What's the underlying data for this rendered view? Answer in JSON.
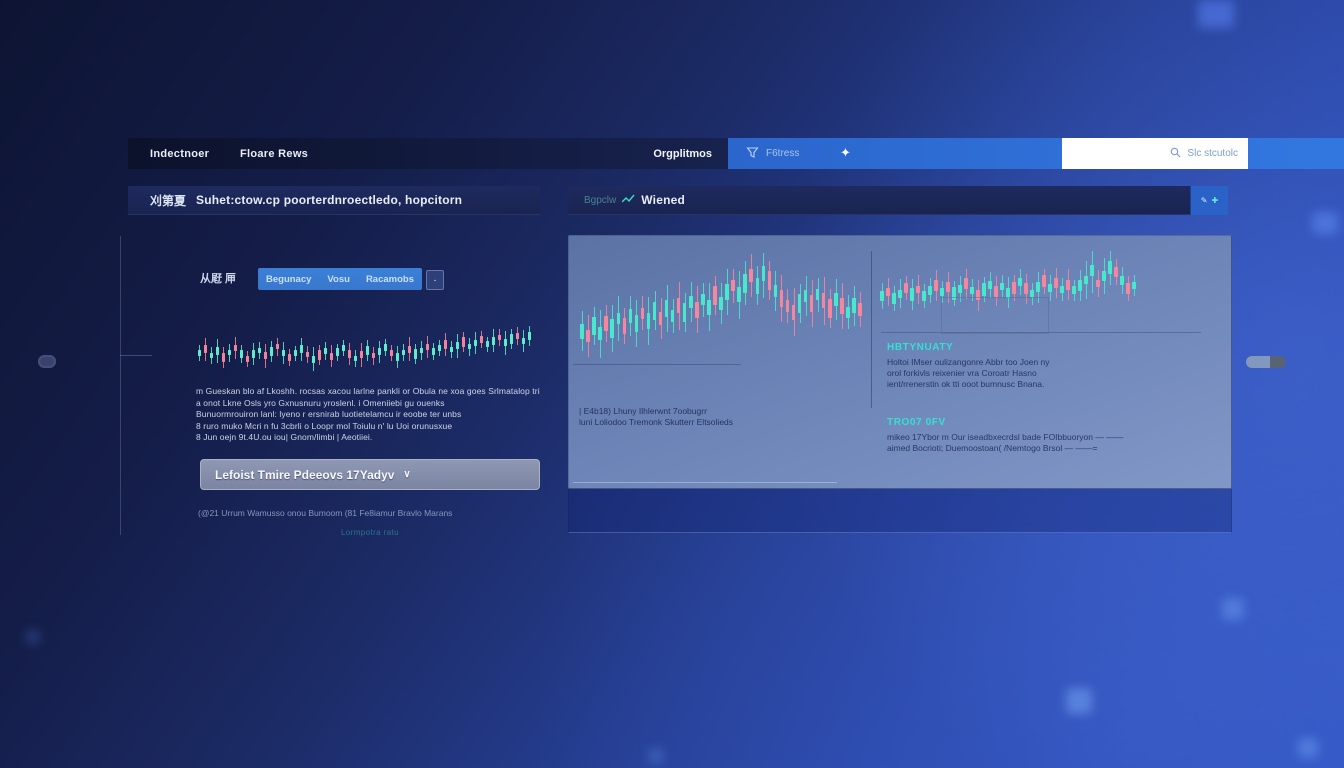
{
  "colors": {
    "candle_up": "#5feccb",
    "candle_down": "#f2849a",
    "accent_teal": "#35e0d0",
    "nav_blue": "#2e6fd4",
    "search_box_bg": "#ffffff"
  },
  "navbar": {
    "items": [
      {
        "label": "Indectnoer"
      },
      {
        "label": "Floare Rews"
      }
    ],
    "section_label": "Orgplitmos",
    "filter_label": "F6tress",
    "star_icon": "✦",
    "search_label": "Slc stcutolc"
  },
  "left_panel": {
    "header": {
      "badge": "刈第夏",
      "title": "Suhet:ctow.cp poorterdnroectledo, hopcitorn"
    },
    "toolbar": {
      "cjk_label": "从屘 㕅",
      "tabs": [
        {
          "label": "Begunacy"
        },
        {
          "label": "Vosu"
        },
        {
          "label": "Racamobs"
        }
      ],
      "more_label": "·"
    },
    "paragraph_lines": [
      "m Gueskan blo af Lkoshh. rocsas xacou larlne pankli or Obula ne xoa goes Srlmatalop tri",
      "a onot Lkne Osls yro Gxnusnuru yroslenl. i Omeniiebi gu ouenks",
      "Bunuormrouiron lanl: lyeno r ersnirab luotietelamcu ir eoobe ter unbs",
      "8 ruro muko Mcri n fu 3cbrli o Loopr mol Toiulu n' lu Uoi orunusxue",
      "8 Jun oejn 9t.4U.ou iou| Gnom/limbi | Aeotiiei."
    ],
    "dropdown": {
      "label": "Lefoist Tmire Pdeeovs 17Yadyv",
      "chevron": "∨"
    },
    "fine_print": "(@21 Urrum Wamusso onou Bumoom (81 Fe8iamur Bravlo Marans",
    "footer_link": "Lormpotra ratu"
  },
  "right_panel": {
    "header": {
      "prefix": "Bgpclw",
      "title": "Wiened"
    },
    "corner_button": {
      "glyph_a": "✎",
      "glyph_b": "✚"
    },
    "note_lines": [
      "| E4b18) Lhuny Ilhlerwnt 7oobugrr",
      "luni Loliodoo Tremonk Skutterr Eltsolieds"
    ],
    "annotations": [
      {
        "title": "HBTYNUATY",
        "lines": [
          "Holtoi IMser oulizangonre Abbr too Joen ny",
          "orol forkivls reixenier vra Coroatr Hasno",
          "ient/rrenerstin ok tti ooot bumnusc Bnana."
        ]
      },
      {
        "title": "TRO07 0FV",
        "lines": [
          "mikeo 17Ybor m Our iseadbxecrdsl bade FOIbbuoryon — ——",
          "aimed Bocrioti; Duemoostoan( /Nemtogo Brsol — ——="
        ]
      }
    ]
  },
  "chart_data": [
    {
      "id": "left-overview",
      "type": "candlestick",
      "title": "",
      "axes": "none",
      "body_width": 3,
      "colors": {
        "up": "#5feccb",
        "down": "#f2849a"
      },
      "candles": [
        [
          58,
          10,
          8,
          1
        ],
        [
          52,
          14,
          12,
          0
        ],
        [
          62,
          8,
          10,
          1
        ],
        [
          55,
          12,
          14,
          1
        ],
        [
          66,
          16,
          9,
          0
        ],
        [
          58,
          9,
          11,
          1
        ],
        [
          50,
          11,
          13,
          0
        ],
        [
          60,
          13,
          8,
          1
        ],
        [
          68,
          10,
          8,
          0
        ],
        [
          60,
          14,
          12,
          1
        ],
        [
          54,
          8,
          10,
          1
        ],
        [
          63,
          12,
          14,
          0
        ],
        [
          56,
          16,
          9,
          1
        ],
        [
          48,
          9,
          11,
          0
        ],
        [
          58,
          11,
          13,
          1
        ],
        [
          66,
          13,
          8,
          0
        ],
        [
          59,
          10,
          8,
          1
        ],
        [
          52,
          14,
          12,
          1
        ],
        [
          61,
          8,
          10,
          0
        ],
        [
          69,
          12,
          14,
          1
        ],
        [
          62,
          16,
          9,
          0
        ],
        [
          55,
          9,
          11,
          1
        ],
        [
          64,
          11,
          13,
          0
        ],
        [
          57,
          13,
          8,
          1
        ],
        [
          50,
          10,
          8,
          1
        ],
        [
          60,
          14,
          12,
          0
        ],
        [
          68,
          8,
          10,
          1
        ],
        [
          61,
          12,
          14,
          0
        ],
        [
          54,
          16,
          9,
          1
        ],
        [
          63,
          9,
          11,
          0
        ],
        [
          56,
          11,
          13,
          1
        ],
        [
          49,
          13,
          8,
          1
        ],
        [
          58,
          10,
          8,
          0
        ],
        [
          65,
          14,
          12,
          1
        ],
        [
          58,
          8,
          10,
          1
        ],
        [
          52,
          12,
          14,
          0
        ],
        [
          60,
          16,
          9,
          1
        ],
        [
          54,
          9,
          11,
          1
        ],
        [
          48,
          11,
          13,
          0
        ],
        [
          56,
          13,
          8,
          1
        ],
        [
          50,
          10,
          8,
          1
        ],
        [
          44,
          14,
          12,
          0
        ],
        [
          52,
          8,
          10,
          1
        ],
        [
          46,
          12,
          14,
          1
        ],
        [
          40,
          16,
          9,
          0
        ],
        [
          48,
          9,
          11,
          1
        ],
        [
          42,
          11,
          13,
          1
        ],
        [
          36,
          13,
          8,
          0
        ],
        [
          44,
          10,
          8,
          1
        ],
        [
          38,
          14,
          12,
          1
        ],
        [
          33,
          8,
          10,
          0
        ],
        [
          41,
          12,
          14,
          1
        ],
        [
          35,
          16,
          9,
          1
        ],
        [
          30,
          9,
          11,
          0
        ],
        [
          38,
          11,
          13,
          1
        ],
        [
          30,
          13,
          10,
          1
        ]
      ]
    },
    {
      "id": "right-main",
      "type": "candlestick",
      "title": "",
      "axes": "none",
      "body_width": 3.5,
      "colors": {
        "up": "#49e8cd",
        "down": "#f4879e"
      },
      "candles": [
        [
          62,
          12,
          10,
          1
        ],
        [
          66,
          9,
          12,
          0
        ],
        [
          58,
          14,
          8,
          1
        ],
        [
          64,
          10,
          14,
          1
        ],
        [
          56,
          12,
          9,
          0
        ],
        [
          60,
          15,
          11,
          1
        ],
        [
          52,
          9,
          13,
          1
        ],
        [
          58,
          13,
          8,
          0
        ],
        [
          50,
          11,
          10,
          1
        ],
        [
          56,
          14,
          12,
          1
        ],
        [
          48,
          9,
          9,
          0
        ],
        [
          54,
          12,
          13,
          1
        ],
        [
          46,
          15,
          8,
          1
        ],
        [
          52,
          10,
          11,
          0
        ],
        [
          44,
          13,
          12,
          1
        ],
        [
          50,
          9,
          9,
          1
        ],
        [
          42,
          12,
          13,
          0
        ],
        [
          47,
          15,
          8,
          1
        ],
        [
          39,
          10,
          11,
          1
        ],
        [
          45,
          13,
          12,
          0
        ],
        [
          37,
          9,
          9,
          1
        ],
        [
          43,
          12,
          13,
          1
        ],
        [
          34,
          15,
          8,
          0
        ],
        [
          40,
          10,
          11,
          1
        ],
        [
          31,
          13,
          12,
          1
        ],
        [
          26,
          9,
          9,
          0
        ],
        [
          33,
          12,
          13,
          1
        ],
        [
          24,
          15,
          10,
          1
        ],
        [
          18,
          10,
          12,
          0
        ],
        [
          26,
          13,
          9,
          1
        ],
        [
          16,
          12,
          14,
          1
        ],
        [
          22,
          15,
          8,
          0
        ],
        [
          30,
          10,
          11,
          1
        ],
        [
          36,
          13,
          12,
          0
        ],
        [
          42,
          9,
          9,
          0
        ],
        [
          47,
          12,
          13,
          0
        ],
        [
          40,
          15,
          8,
          1
        ],
        [
          34,
          10,
          11,
          1
        ],
        [
          40,
          13,
          12,
          0
        ],
        [
          33,
          9,
          9,
          1
        ],
        [
          38,
          12,
          13,
          0
        ],
        [
          44,
          15,
          8,
          0
        ],
        [
          37,
          10,
          11,
          1
        ],
        [
          42,
          13,
          12,
          0
        ],
        [
          47,
          9,
          9,
          1
        ],
        [
          42,
          12,
          10,
          1
        ],
        [
          45,
          10,
          9,
          0
        ]
      ]
    },
    {
      "id": "right-detail",
      "type": "candlestick",
      "title": "",
      "axes": "none",
      "body_width": 3.5,
      "colors": {
        "up": "#49e8cd",
        "down": "#f4879e"
      },
      "candles": [
        [
          55,
          12,
          10,
          1
        ],
        [
          50,
          9,
          12,
          0
        ],
        [
          58,
          14,
          8,
          1
        ],
        [
          52,
          10,
          13,
          1
        ],
        [
          45,
          12,
          9,
          0
        ],
        [
          53,
          15,
          11,
          1
        ],
        [
          47,
          9,
          13,
          0
        ],
        [
          55,
          13,
          8,
          1
        ],
        [
          48,
          11,
          10,
          1
        ],
        [
          42,
          14,
          12,
          0
        ],
        [
          50,
          9,
          9,
          1
        ],
        [
          44,
          12,
          13,
          0
        ],
        [
          52,
          15,
          8,
          1
        ],
        [
          46,
          10,
          11,
          1
        ],
        [
          40,
          13,
          12,
          0
        ],
        [
          48,
          9,
          9,
          1
        ],
        [
          54,
          12,
          13,
          0
        ],
        [
          47,
          15,
          8,
          1
        ],
        [
          41,
          10,
          11,
          1
        ],
        [
          49,
          13,
          12,
          0
        ],
        [
          43,
          9,
          9,
          1
        ],
        [
          51,
          12,
          13,
          1
        ],
        [
          45,
          15,
          8,
          0
        ],
        [
          38,
          10,
          11,
          1
        ],
        [
          46,
          13,
          12,
          0
        ],
        [
          52,
          9,
          9,
          1
        ],
        [
          44,
          12,
          13,
          1
        ],
        [
          37,
          15,
          8,
          0
        ],
        [
          45,
          10,
          11,
          1
        ],
        [
          39,
          13,
          12,
          0
        ],
        [
          47,
          9,
          9,
          1
        ],
        [
          41,
          12,
          13,
          0
        ],
        [
          48,
          10,
          8,
          1
        ],
        [
          42,
          13,
          12,
          1
        ],
        [
          35,
          10,
          18,
          1
        ],
        [
          24,
          14,
          20,
          1
        ],
        [
          40,
          9,
          12,
          0
        ],
        [
          30,
          12,
          16,
          1
        ],
        [
          20,
          16,
          14,
          1
        ],
        [
          26,
          12,
          10,
          0
        ],
        [
          36,
          10,
          12,
          1
        ],
        [
          46,
          13,
          9,
          0
        ],
        [
          42,
          9,
          8,
          1
        ]
      ]
    }
  ]
}
